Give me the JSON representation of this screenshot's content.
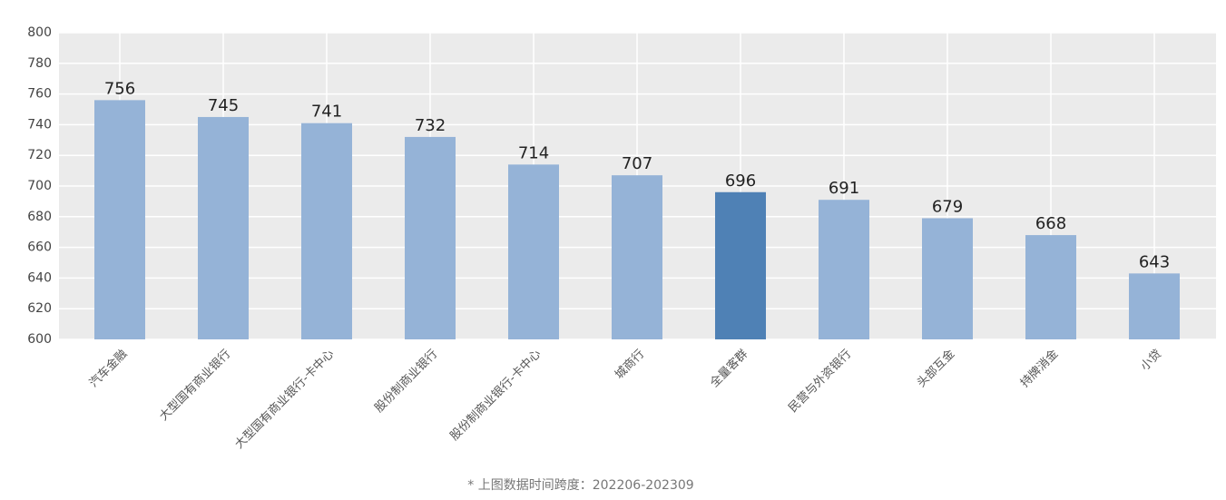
{
  "chart_data": {
    "type": "bar",
    "categories": [
      "汽车金融",
      "大型国有商业银行",
      "大型国有商业银行-卡中心",
      "股份制商业银行",
      "股份制商业银行-卡中心",
      "城商行",
      "全量客群",
      "民营与外资银行",
      "头部互金",
      "持牌消金",
      "小贷"
    ],
    "values": [
      756,
      745,
      741,
      732,
      714,
      707,
      696,
      691,
      679,
      668,
      643
    ],
    "colors": [
      "#95b3d7",
      "#95b3d7",
      "#95b3d7",
      "#95b3d7",
      "#95b3d7",
      "#95b3d7",
      "#4f81b5",
      "#95b3d7",
      "#95b3d7",
      "#95b3d7",
      "#95b3d7"
    ],
    "ylim": [
      600,
      800
    ],
    "yticks": [
      600,
      620,
      640,
      660,
      680,
      700,
      720,
      740,
      760,
      780,
      800
    ],
    "grid": true,
    "footnote": "* 上图数据时间跨度：202206-202309"
  }
}
